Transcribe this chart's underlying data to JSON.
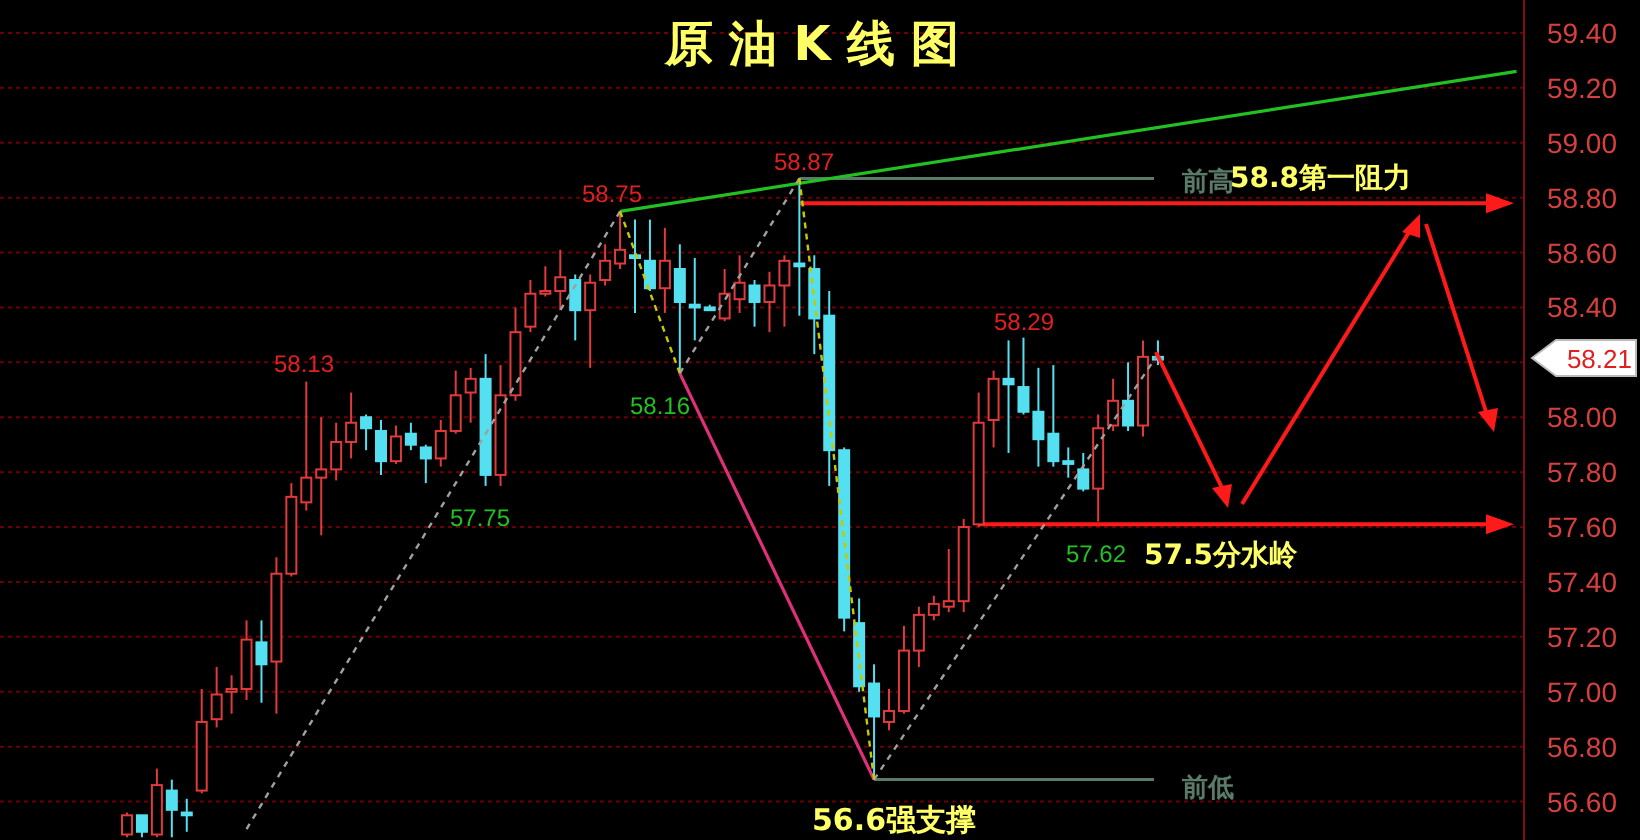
{
  "chart_data": {
    "type": "candlestick",
    "title": "原油K线图",
    "categories": [
      null,
      null,
      null,
      null,
      null,
      null,
      null,
      null,
      null,
      null,
      null,
      null,
      null,
      null,
      null,
      null,
      null,
      null,
      null,
      null,
      null,
      null,
      null,
      null,
      null,
      null,
      null,
      null,
      null,
      null,
      null,
      null,
      null,
      null,
      null,
      null,
      null,
      null,
      null,
      null,
      null,
      null,
      null,
      null,
      null,
      null,
      null,
      null,
      null,
      null,
      null,
      null,
      null,
      null,
      null,
      null,
      null,
      null,
      null,
      null,
      null,
      null,
      null,
      null,
      null,
      null,
      null,
      null,
      null,
      null,
      null,
      null,
      null,
      null,
      null,
      null,
      null,
      null,
      null,
      null,
      null,
      null,
      null,
      null,
      null,
      null,
      null,
      null,
      null,
      null,
      null,
      null,
      null,
      null,
      null,
      null,
      null,
      null,
      null,
      null,
      null,
      null
    ],
    "ohlc": [
      null,
      null,
      null,
      null,
      null,
      null,
      null,
      null,
      [
        56.48,
        56.56,
        56.47,
        56.55
      ],
      [
        56.55,
        56.55,
        56.47,
        56.49
      ],
      [
        56.48,
        56.72,
        56.47,
        56.66
      ],
      [
        56.64,
        56.68,
        56.47,
        56.57
      ],
      [
        56.56,
        56.61,
        56.49,
        56.55
      ],
      [
        56.64,
        57.01,
        56.63,
        56.89
      ],
      [
        56.9,
        57.09,
        56.87,
        56.99
      ],
      [
        57.0,
        57.06,
        56.92,
        57.01
      ],
      [
        57.01,
        57.26,
        56.97,
        57.19
      ],
      [
        57.18,
        57.26,
        56.96,
        57.1
      ],
      [
        57.11,
        57.49,
        56.92,
        57.43
      ],
      [
        57.43,
        57.76,
        57.42,
        57.71
      ],
      [
        57.69,
        58.13,
        57.66,
        57.78
      ],
      [
        57.78,
        58.0,
        57.57,
        57.81
      ],
      [
        57.81,
        57.98,
        57.77,
        57.91
      ],
      [
        57.91,
        58.09,
        57.85,
        57.98
      ],
      [
        58.0,
        58.01,
        57.88,
        57.96
      ],
      [
        57.95,
        57.99,
        57.79,
        57.84
      ],
      [
        57.84,
        57.97,
        57.83,
        57.93
      ],
      [
        57.94,
        57.98,
        57.88,
        57.9
      ],
      [
        57.89,
        57.9,
        57.76,
        57.85
      ],
      [
        57.85,
        57.99,
        57.82,
        57.95
      ],
      [
        57.95,
        58.17,
        57.94,
        58.08
      ],
      [
        58.09,
        58.18,
        57.98,
        58.14
      ],
      [
        58.14,
        58.23,
        57.75,
        57.79
      ],
      [
        57.79,
        58.19,
        57.75,
        58.08
      ],
      [
        58.08,
        58.4,
        58.06,
        58.31
      ],
      [
        58.33,
        58.5,
        58.31,
        58.45
      ],
      [
        58.45,
        58.55,
        58.44,
        58.46
      ],
      [
        58.46,
        58.61,
        58.39,
        58.51
      ],
      [
        58.5,
        58.52,
        58.28,
        58.39
      ],
      [
        58.39,
        58.52,
        58.18,
        58.49
      ],
      [
        58.5,
        58.63,
        58.48,
        58.57
      ],
      [
        58.56,
        58.75,
        58.54,
        58.61
      ],
      [
        58.59,
        58.72,
        58.38,
        58.58
      ],
      [
        58.57,
        58.72,
        58.46,
        58.47
      ],
      [
        58.47,
        58.69,
        58.38,
        58.57
      ],
      [
        58.54,
        58.63,
        58.16,
        58.42
      ],
      [
        58.41,
        58.58,
        58.28,
        58.4
      ],
      [
        58.4,
        58.41,
        58.39,
        58.39
      ],
      [
        58.36,
        58.54,
        58.35,
        58.45
      ],
      [
        58.43,
        58.59,
        58.38,
        58.49
      ],
      [
        58.48,
        58.5,
        58.33,
        58.42
      ],
      [
        58.42,
        58.53,
        58.31,
        58.48
      ],
      [
        58.48,
        58.59,
        58.33,
        58.57
      ],
      [
        58.56,
        58.87,
        58.37,
        58.55
      ],
      [
        58.54,
        58.59,
        58.23,
        58.36
      ],
      [
        58.37,
        58.46,
        57.75,
        57.88
      ],
      [
        57.88,
        57.89,
        57.22,
        57.27
      ],
      [
        57.25,
        57.34,
        57.0,
        57.02
      ],
      [
        57.03,
        57.1,
        56.68,
        56.91
      ],
      [
        56.89,
        57.01,
        56.86,
        56.93
      ],
      [
        56.93,
        57.24,
        56.92,
        57.15
      ],
      [
        57.15,
        57.31,
        57.09,
        57.28
      ],
      [
        57.28,
        57.35,
        57.26,
        57.32
      ],
      [
        57.31,
        57.52,
        57.29,
        57.33
      ],
      [
        57.33,
        57.63,
        57.29,
        57.6
      ],
      [
        57.61,
        58.09,
        57.6,
        57.98
      ],
      [
        57.99,
        58.17,
        57.89,
        58.14
      ],
      [
        58.14,
        58.28,
        57.87,
        58.12
      ],
      [
        58.11,
        58.29,
        58.01,
        58.02
      ],
      [
        58.02,
        58.18,
        57.82,
        57.92
      ],
      [
        57.94,
        58.19,
        57.82,
        57.84
      ],
      [
        57.84,
        57.89,
        57.78,
        57.83
      ],
      [
        57.81,
        57.87,
        57.73,
        57.74
      ],
      [
        57.74,
        58.01,
        57.62,
        57.96
      ],
      [
        57.97,
        58.14,
        57.95,
        58.06
      ],
      [
        58.06,
        58.2,
        57.95,
        57.97
      ],
      [
        57.97,
        58.28,
        57.93,
        58.22
      ],
      [
        58.22,
        58.28,
        58.19,
        58.21
      ],
      null,
      null,
      null,
      null,
      null,
      null,
      null,
      null,
      null,
      null,
      null,
      null,
      null,
      null,
      null,
      null,
      null,
      null,
      null,
      null,
      null,
      null,
      null,
      null
    ],
    "series": [
      {
        "type": "line",
        "color": "#a0a0a0",
        "line_style": "dashed",
        "values": [
          null,
          null,
          null,
          null,
          null,
          null,
          null,
          null,
          null,
          null,
          null,
          null,
          null,
          null,
          null,
          null,
          56.5,
          null,
          null,
          null,
          null,
          null,
          null,
          null,
          null,
          null,
          null,
          null,
          null,
          null,
          null,
          null,
          null,
          null,
          null,
          null,
          null,
          null,
          null,
          null,
          null,
          58.75,
          null,
          null,
          null,
          null,
          null,
          null,
          null,
          null,
          null,
          null,
          null,
          null,
          null,
          null,
          null,
          null,
          null,
          null,
          null,
          null,
          null,
          null,
          null,
          null,
          null,
          null,
          null,
          null,
          null,
          null,
          null,
          null,
          null,
          null,
          null,
          null,
          null,
          null,
          null,
          null,
          null,
          null,
          null,
          null,
          null,
          null,
          null,
          null,
          null,
          null,
          null,
          null,
          null,
          null,
          null,
          null,
          null,
          null,
          null,
          null
        ]
      },
      {
        "type": "line",
        "color": "#a0a0a0",
        "line_style": "dashed",
        "values": [
          null,
          null,
          null,
          null,
          null,
          null,
          null,
          null,
          null,
          null,
          null,
          null,
          null,
          null,
          null,
          null,
          null,
          null,
          null,
          null,
          null,
          null,
          null,
          null,
          null,
          null,
          null,
          null,
          null,
          null,
          null,
          null,
          null,
          null,
          null,
          null,
          null,
          null,
          null,
          null,
          null,
          null,
          null,
          null,
          null,
          58.16,
          null,
          null,
          null,
          null,
          null,
          null,
          null,
          58.87,
          null,
          null,
          null,
          null,
          null,
          null,
          null,
          null,
          null,
          null,
          null,
          null,
          null,
          null,
          null,
          null,
          null,
          null,
          null,
          null,
          null,
          null,
          null,
          null,
          null,
          null,
          null,
          null,
          null,
          null,
          null,
          null,
          null,
          null,
          null,
          null,
          null,
          null,
          null,
          null,
          null,
          null,
          null,
          null,
          null,
          null,
          null,
          null
        ]
      },
      {
        "type": "line",
        "color": "#a0a0a0",
        "line_style": "dashed",
        "values": [
          null,
          null,
          null,
          null,
          null,
          null,
          null,
          null,
          null,
          null,
          null,
          null,
          null,
          null,
          null,
          null,
          null,
          null,
          null,
          null,
          null,
          null,
          null,
          null,
          null,
          null,
          null,
          null,
          null,
          null,
          null,
          null,
          null,
          null,
          null,
          null,
          null,
          null,
          null,
          null,
          null,
          null,
          null,
          null,
          null,
          null,
          null,
          null,
          null,
          null,
          null,
          null,
          null,
          null,
          null,
          null,
          null,
          null,
          56.68,
          null,
          null,
          null,
          null,
          null,
          null,
          null,
          null,
          null,
          null,
          null,
          null,
          null,
          null,
          null,
          null,
          null,
          null,
          58.23,
          null,
          null,
          null,
          null,
          null,
          null,
          null,
          null,
          null,
          null,
          null,
          null,
          null,
          null,
          null,
          null,
          null,
          null,
          null,
          null,
          null,
          null,
          null,
          null
        ]
      },
      {
        "type": "line",
        "color": "#c8c800",
        "line_style": "dotted",
        "values": [
          null,
          null,
          null,
          null,
          null,
          null,
          null,
          null,
          null,
          null,
          null,
          null,
          null,
          null,
          null,
          null,
          null,
          null,
          null,
          null,
          null,
          null,
          null,
          null,
          null,
          null,
          null,
          null,
          null,
          null,
          null,
          null,
          null,
          null,
          null,
          null,
          null,
          null,
          null,
          null,
          null,
          58.75,
          null,
          null,
          null,
          58.16,
          null,
          null,
          null,
          null,
          null,
          null,
          null,
          null,
          null,
          null,
          null,
          null,
          null,
          null,
          null,
          null,
          null,
          null,
          null,
          null,
          null,
          null,
          null,
          null,
          null,
          null,
          null,
          null,
          null,
          null,
          null,
          null,
          null,
          null,
          null,
          null,
          null,
          null,
          null,
          null,
          null,
          null,
          null,
          null,
          null,
          null,
          null,
          null,
          null,
          null,
          null,
          null,
          null,
          null,
          null,
          null
        ]
      },
      {
        "type": "line",
        "color": "#c8c800",
        "line_style": "dotted",
        "values": [
          null,
          null,
          null,
          null,
          null,
          null,
          null,
          null,
          null,
          null,
          null,
          null,
          null,
          null,
          null,
          null,
          null,
          null,
          null,
          null,
          null,
          null,
          null,
          null,
          null,
          null,
          null,
          null,
          null,
          null,
          null,
          null,
          null,
          null,
          null,
          null,
          null,
          null,
          null,
          null,
          null,
          null,
          null,
          null,
          null,
          null,
          null,
          null,
          null,
          null,
          null,
          null,
          null,
          58.87,
          null,
          null,
          null,
          null,
          56.68,
          null,
          null,
          null,
          null,
          null,
          null,
          null,
          null,
          null,
          null,
          null,
          null,
          null,
          null,
          null,
          null,
          null,
          null,
          null,
          null,
          null,
          null,
          null,
          null,
          null,
          null,
          null,
          null,
          null,
          null,
          null,
          null,
          null,
          null,
          null,
          null,
          null,
          null,
          null,
          null,
          null,
          null,
          null
        ]
      },
      {
        "type": "line",
        "color": "#e0307a",
        "line_style": "solid",
        "values": [
          null,
          null,
          null,
          null,
          null,
          null,
          null,
          null,
          null,
          null,
          null,
          null,
          null,
          null,
          null,
          null,
          null,
          null,
          null,
          null,
          null,
          null,
          null,
          null,
          null,
          null,
          null,
          null,
          null,
          null,
          null,
          null,
          null,
          null,
          null,
          null,
          null,
          null,
          null,
          null,
          null,
          null,
          null,
          null,
          null,
          58.16,
          null,
          null,
          null,
          null,
          null,
          null,
          null,
          null,
          null,
          null,
          null,
          null,
          56.68,
          null,
          null,
          null,
          null,
          null,
          null,
          null,
          null,
          null,
          null,
          null,
          null,
          null,
          null,
          null,
          null,
          null,
          null,
          null,
          null,
          null,
          null,
          null,
          null,
          null,
          null,
          null,
          null,
          null,
          null,
          null,
          null,
          null,
          null,
          null,
          null,
          null,
          null,
          null,
          null,
          null,
          null,
          null
        ]
      },
      {
        "type": "line",
        "color": "#22c022",
        "line_style": "solid",
        "values": [
          null,
          null,
          null,
          null,
          null,
          null,
          null,
          null,
          null,
          null,
          null,
          null,
          null,
          null,
          null,
          null,
          null,
          null,
          null,
          null,
          null,
          null,
          null,
          null,
          null,
          null,
          null,
          null,
          null,
          null,
          null,
          null,
          null,
          null,
          null,
          null,
          null,
          null,
          null,
          null,
          null,
          58.75,
          null,
          null,
          null,
          null,
          null,
          null,
          null,
          null,
          null,
          null,
          null,
          null,
          null,
          null,
          null,
          null,
          null,
          null,
          null,
          null,
          null,
          null,
          null,
          null,
          null,
          null,
          null,
          null,
          null,
          null,
          null,
          null,
          null,
          null,
          null,
          null,
          null,
          null,
          null,
          null,
          null,
          null,
          null,
          null,
          null,
          null,
          null,
          null,
          null,
          null,
          null,
          null,
          null,
          null,
          null,
          null,
          null,
          null,
          null,
          59.26
        ]
      }
    ],
    "ylim": [
      56.46,
      59.52
    ],
    "yticks": [
      {
        "value": 56.6,
        "label": "56.60"
      },
      {
        "value": 56.8,
        "label": "56.80"
      },
      {
        "value": 57.0,
        "label": "57.00"
      },
      {
        "value": 57.2,
        "label": "57.20"
      },
      {
        "value": 57.4,
        "label": "57.40"
      },
      {
        "value": 57.6,
        "label": "57.60"
      },
      {
        "value": 57.8,
        "label": "57.80"
      },
      {
        "value": 58.0,
        "label": "58.00"
      },
      {
        "value": 58.2,
        "label": null
      },
      {
        "value": 58.4,
        "label": "58.40"
      },
      {
        "value": 58.6,
        "label": "58.60"
      },
      {
        "value": 58.8,
        "label": "58.80"
      },
      {
        "value": 59.0,
        "label": "59.00"
      },
      {
        "value": 59.2,
        "label": "59.20"
      },
      {
        "value": 59.4,
        "label": "59.40"
      }
    ],
    "grid": "y",
    "tick_labels": "y",
    "ref_lines": [
      {
        "axis": "y",
        "value": 58.78,
        "label": "58.8第一阻力",
        "color": "#ff1a1a"
      },
      {
        "axis": "y",
        "value": 57.61,
        "label": "57.5分水岭",
        "color": "#ff1a1a"
      },
      {
        "axis": "y",
        "value": 58.87,
        "label": "前高",
        "color": "#5a7a6a"
      },
      {
        "axis": "y",
        "value": 56.68,
        "label": "前低",
        "color": "#5a7a6a"
      }
    ],
    "annotations": [
      "58.13",
      "58.75",
      "58.87",
      "58.29",
      "58.16",
      "57.75",
      "57.62",
      "58.21",
      "56.6强支撑"
    ]
  }
}
